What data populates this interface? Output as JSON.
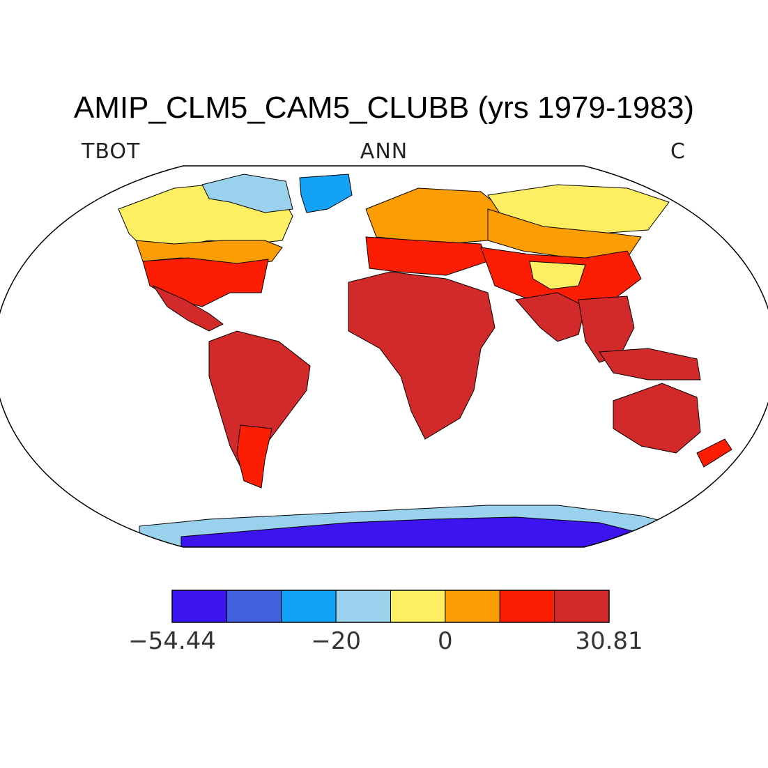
{
  "title": "AMIP_CLM5_CAM5_CLUBB (yrs 1979-1983)",
  "variable": "TBOT",
  "season": "ANN",
  "units": "C",
  "colorbar": {
    "colors": [
      "#3b14f0",
      "#4062e0",
      "#13a2f5",
      "#9ad1ed",
      "#fdee62",
      "#fc9d03",
      "#fd1d03",
      "#d2292b"
    ],
    "labels": [
      "−54.44",
      "−20",
      "0",
      "30.81"
    ],
    "label_positions": [
      0,
      3,
      5,
      8
    ]
  },
  "map_data": {
    "projection": "Robinson",
    "variable": "TBOT",
    "units": "C",
    "min": -54.44,
    "max": 30.81,
    "regions": [
      {
        "name": "Africa",
        "class": 7
      },
      {
        "name": "South America",
        "class": 7
      },
      {
        "name": "India",
        "class": 7
      },
      {
        "name": "Australia",
        "class": 7
      },
      {
        "name": "United States",
        "class": 6
      },
      {
        "name": "China",
        "class": 6
      },
      {
        "name": "Europe",
        "class": 5
      },
      {
        "name": "Canada",
        "class": 4
      },
      {
        "name": "Siberia",
        "class": 4
      },
      {
        "name": "Arctic Canada",
        "class": 3
      },
      {
        "name": "Greenland",
        "class": 2
      },
      {
        "name": "Antarctica",
        "class": 0
      }
    ]
  }
}
